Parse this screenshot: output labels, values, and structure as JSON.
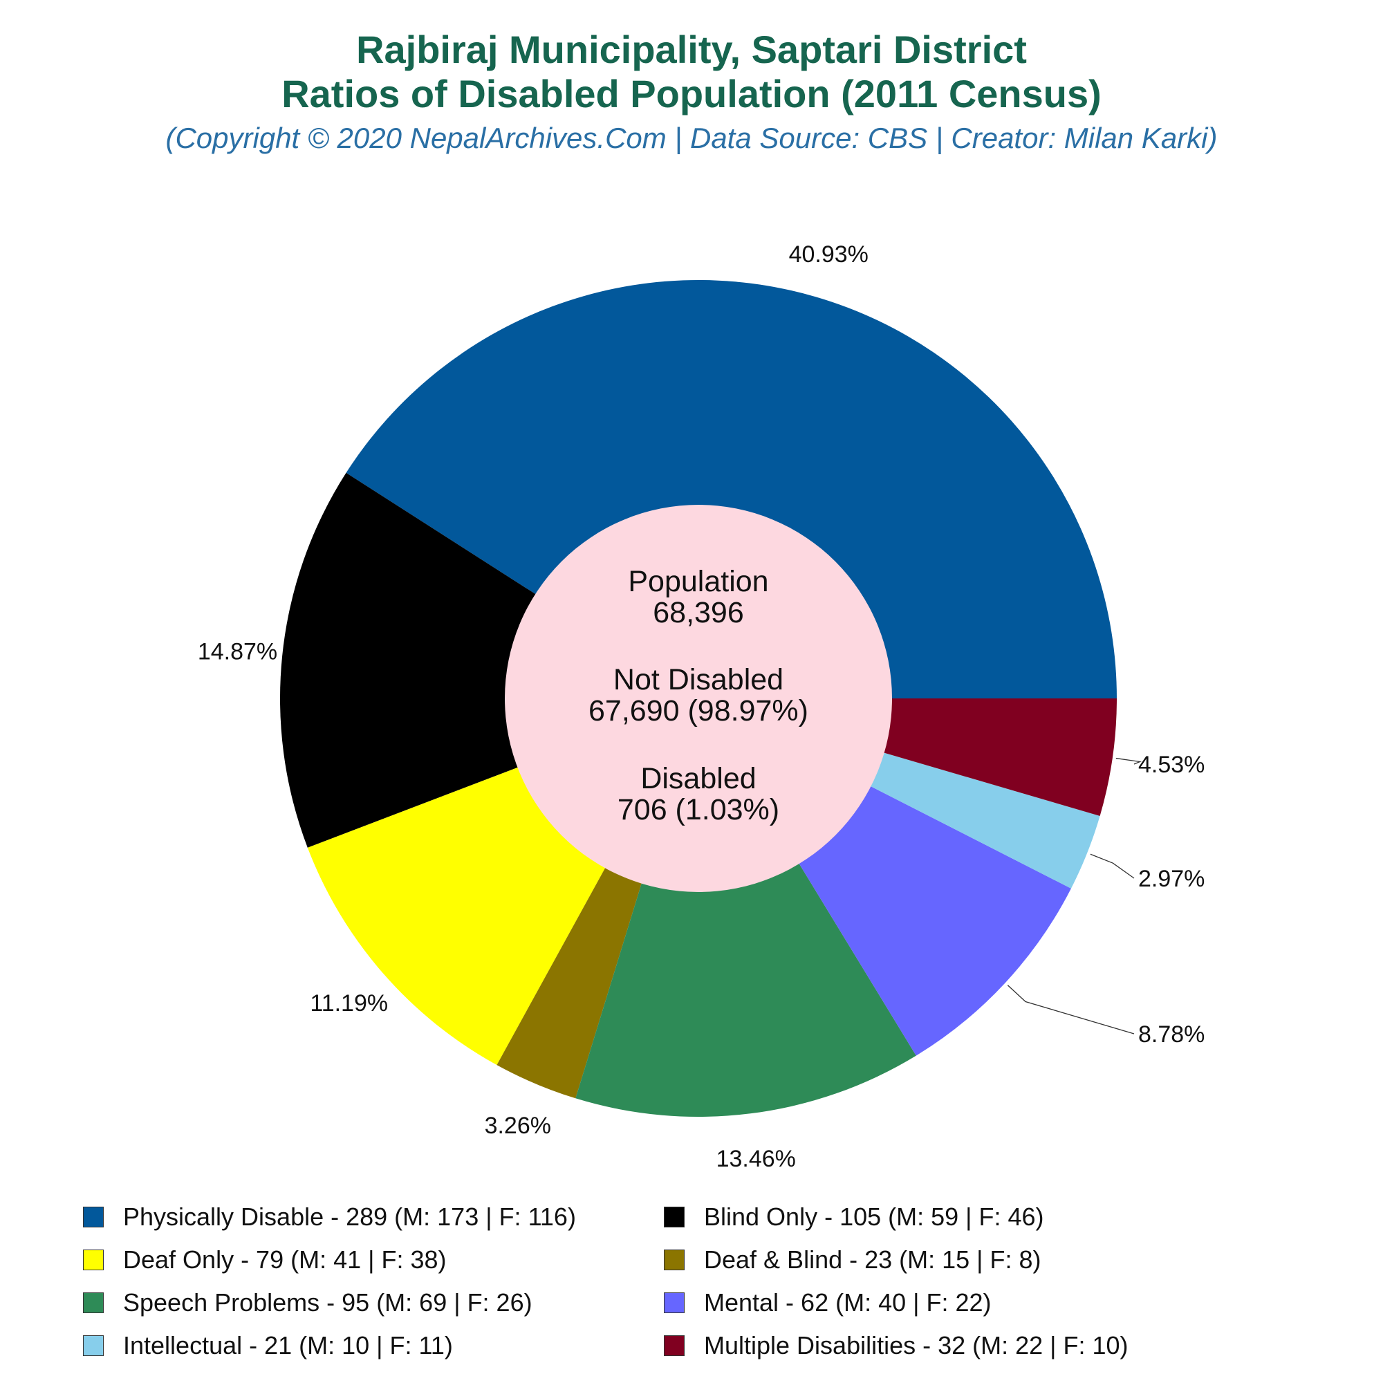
{
  "header": {
    "title_line1": "Rajbiraj Municipality, Saptari District",
    "title_line2": "Ratios of Disabled Population (2011 Census)",
    "subtitle": "(Copyright © 2020 NepalArchives.Com | Data Source: CBS | Creator: Milan Karki)"
  },
  "center": {
    "population_label": "Population",
    "population_value": "68,396",
    "not_disabled_label": "Not Disabled",
    "not_disabled_value": "67,690 (98.97%)",
    "disabled_label": "Disabled",
    "disabled_value": "706 (1.03%)",
    "color": "#fdd8e0"
  },
  "chart_data": {
    "type": "pie",
    "title": "Rajbiraj Municipality, Saptari District Ratios of Disabled Population (2011 Census)",
    "categories": [
      "Physically Disable",
      "Blind Only",
      "Deaf Only",
      "Deaf & Blind",
      "Speech Problems",
      "Mental",
      "Intellectual",
      "Multiple Disabilities"
    ],
    "values": [
      289,
      105,
      79,
      23,
      95,
      62,
      21,
      32
    ],
    "percent_labels": [
      "40.93%",
      "14.87%",
      "11.19%",
      "3.26%",
      "13.46%",
      "8.78%",
      "2.97%",
      "4.53%"
    ],
    "colors": [
      "#02589b",
      "#000000",
      "#ffff00",
      "#8b7500",
      "#2e8b57",
      "#6666ff",
      "#87ceeb",
      "#800020"
    ],
    "slice_order_clockwise_from_3_oclock_ccw": true,
    "legend_placement": "bottom",
    "legend": [
      {
        "label": "Physically Disable - 289 (M: 173 | F: 116)",
        "color": "#02589b"
      },
      {
        "label": "Blind Only - 105 (M: 59 | F: 46)",
        "color": "#000000"
      },
      {
        "label": "Deaf Only - 79 (M: 41 | F: 38)",
        "color": "#ffff00"
      },
      {
        "label": "Deaf & Blind - 23 (M: 15 | F: 8)",
        "color": "#8b7500"
      },
      {
        "label": "Speech Problems - 95 (M: 69 | F: 26)",
        "color": "#2e8b57"
      },
      {
        "label": "Mental - 62 (M: 40 | F: 22)",
        "color": "#6666ff"
      },
      {
        "label": "Intellectual - 21 (M: 10 | F: 11)",
        "color": "#87ceeb"
      },
      {
        "label": "Multiple Disabilities - 32 (M: 22 | F: 10)",
        "color": "#800020"
      }
    ]
  }
}
